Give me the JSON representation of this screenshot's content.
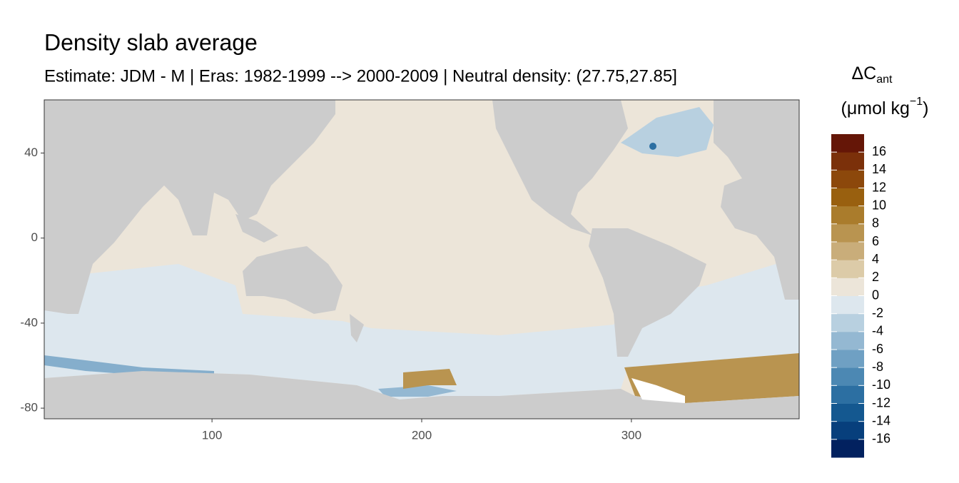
{
  "chart_data": {
    "type": "map",
    "title": "Density slab average",
    "subtitle": "Estimate: JDM - M | Eras: 1982-1999 --> 2000-2009 | Neutral density: (27.75,27.85]",
    "xlim": [
      20,
      380
    ],
    "xticks": [
      100,
      200,
      300
    ],
    "ylim": [
      -85,
      65
    ],
    "yticks": [
      40,
      0,
      -40,
      -80
    ],
    "legend": {
      "title_main": "ΔC",
      "title_sub": "ant",
      "unit_main": "(μmol kg",
      "unit_sup": "−1",
      "unit_close": ")",
      "lim": [
        -18,
        18
      ],
      "ticks": [
        16,
        14,
        12,
        10,
        8,
        6,
        4,
        2,
        0,
        -2,
        -4,
        -6,
        -8,
        -10,
        -12,
        -14,
        -16
      ],
      "colors": [
        "#02215f",
        "#073f7c",
        "#145890",
        "#2c6fa2",
        "#4c88b3",
        "#6fa0c3",
        "#94b8d2",
        "#b8d0e0",
        "#dde7ee",
        "#ece5d9",
        "#dccba8",
        "#c9ad7a",
        "#b99450",
        "#aa7c2c",
        "#99600f",
        "#8c480b",
        "#7b300a",
        "#651607"
      ]
    }
  }
}
